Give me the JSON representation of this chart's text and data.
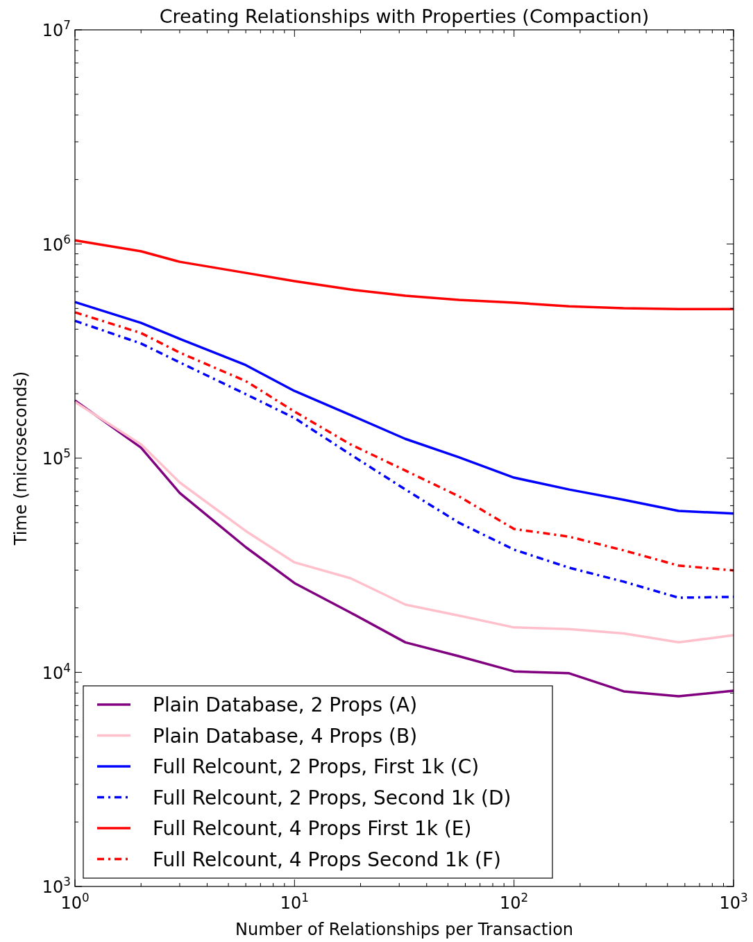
{
  "chart_data": {
    "type": "line",
    "title": "Creating Relationships with Properties (Compaction)",
    "xlabel": "Number of Relationships per Transaction",
    "ylabel": "Time (microseconds)",
    "log": "xy",
    "grid": false,
    "legend": "bottom left",
    "x": [
      1,
      2,
      3,
      6,
      10,
      18,
      32,
      56,
      100,
      178,
      316,
      562,
      1000
    ],
    "xlim": [
      1,
      1000
    ],
    "xticks": [
      {
        "value": 1,
        "label": "10$^{0}$"
      },
      {
        "value": 10,
        "label": "10$^{1}$"
      },
      {
        "value": 100,
        "label": "10$^{2}$"
      },
      {
        "value": 1000,
        "label": "10$^{3}$"
      }
    ],
    "ylim": [
      1000,
      10000000
    ],
    "yticks": [
      {
        "value": 1000,
        "label": "10$^{3}$"
      },
      {
        "value": 10000,
        "label": "10$^{4}$"
      },
      {
        "value": 100000,
        "label": "10$^{5}$"
      },
      {
        "value": 1000000,
        "label": "10$^{6}$"
      },
      {
        "value": 10000000,
        "label": "10$^{7}$"
      }
    ],
    "series": [
      {
        "name": "Plain Database, 2 Props (A)",
        "color": "#800080",
        "line_style": "solid",
        "values": [
          186000,
          112000,
          68800,
          38400,
          26100,
          19000,
          13800,
          11900,
          10100,
          9900,
          8150,
          7730,
          8200
        ]
      },
      {
        "name": "Plain Database, 4 Props (B)",
        "color": "#ffc0cb",
        "line_style": "solid",
        "values": [
          183000,
          116000,
          77000,
          45700,
          32600,
          27500,
          20700,
          18400,
          16200,
          15900,
          15200,
          13800,
          14900
        ]
      },
      {
        "name": "Full Relcount, 2 Props, First 1k (C)",
        "color": "#0000ff",
        "line_style": "solid",
        "values": [
          536000,
          428000,
          361000,
          272000,
          206000,
          159000,
          123000,
          101000,
          81100,
          71400,
          63900,
          56700,
          55100
        ]
      },
      {
        "name": "Full Relcount, 2 Props, Second 1k (D)",
        "color": "#0000ff",
        "line_style": "dashdot",
        "values": [
          438000,
          343000,
          280000,
          199000,
          154000,
          104000,
          71400,
          50000,
          37400,
          30800,
          26500,
          22300,
          22500
        ]
      },
      {
        "name": "Full Relcount, 4 Props First 1k (E)",
        "color": "#ff0000",
        "line_style": "solid",
        "values": [
          1040000,
          925000,
          826000,
          733000,
          671000,
          613000,
          573000,
          548000,
          532000,
          512000,
          501000,
          497000,
          497000
        ]
      },
      {
        "name": "Full Relcount, 4 Props Second 1k (F)",
        "color": "#ff0000",
        "line_style": "dashdot",
        "values": [
          480000,
          384000,
          311000,
          229000,
          165000,
          116000,
          87500,
          66400,
          46700,
          43000,
          37100,
          31500,
          29900
        ]
      }
    ]
  }
}
